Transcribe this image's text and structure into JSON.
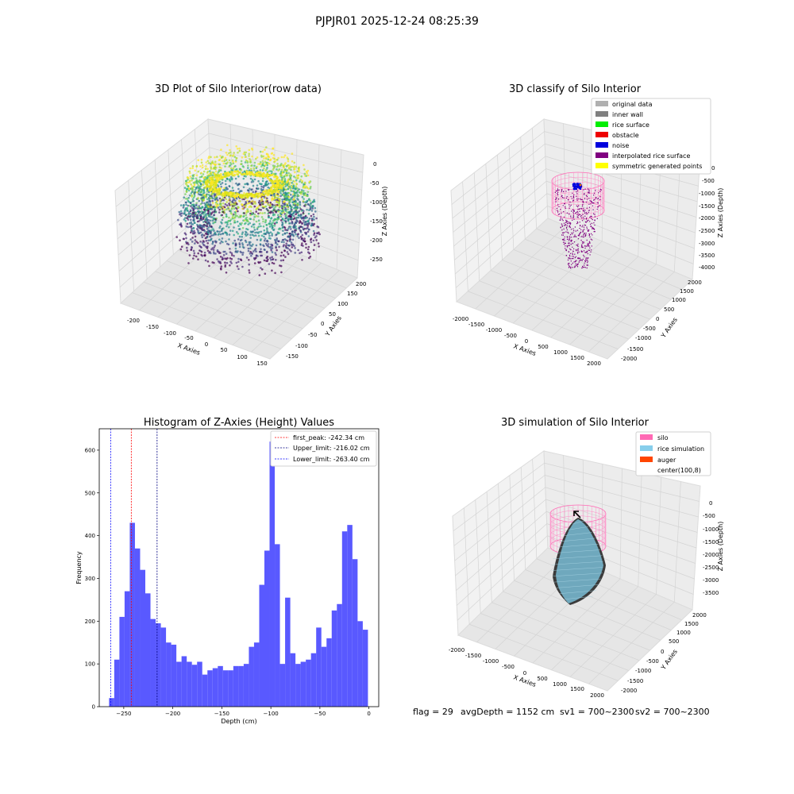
{
  "suptitle": "PJPJR01 2025-12-24 08:25:39",
  "panels": {
    "raw": {
      "title": "3D Plot of Silo Interior(row data)",
      "xlabel": "X Axies",
      "ylabel": "Y Axies",
      "zlabel": "Z Axies (Depth)",
      "xticks": [
        "-200",
        "-150",
        "-100",
        "-50",
        "0",
        "50",
        "100",
        "150"
      ],
      "yticks": [
        "-150",
        "-100",
        "-50",
        "0",
        "50",
        "100",
        "150",
        "200"
      ],
      "zticks": [
        "0",
        "-50",
        "-100",
        "-150",
        "-200",
        "-250"
      ]
    },
    "classify": {
      "title": "3D classify of Silo Interior",
      "xlabel": "X Axies",
      "ylabel": "Y Axies",
      "zlabel": "Z Axies (Depth)",
      "xticks": [
        "-2000",
        "-1500",
        "-1000",
        "-500",
        "0",
        "500",
        "1000",
        "1500",
        "2000"
      ],
      "yticks": [
        "-2000",
        "-1500",
        "-1000",
        "-500",
        "0",
        "500",
        "1000",
        "1500",
        "2000"
      ],
      "zticks": [
        "0",
        "-500",
        "-1000",
        "-1500",
        "-2000",
        "-2500",
        "-3000",
        "-3500",
        "-4000"
      ],
      "legend": [
        {
          "label": "original data",
          "color": "#b0b0b0"
        },
        {
          "label": "inner wall",
          "color": "#808080"
        },
        {
          "label": "rice surface",
          "color": "#00ee00"
        },
        {
          "label": "obstacle",
          "color": "#ee0000"
        },
        {
          "label": "noise",
          "color": "#0000dd"
        },
        {
          "label": "interpolated rice surface",
          "color": "#800080"
        },
        {
          "label": "symmetric generated points",
          "color": "#ffff00"
        }
      ]
    },
    "simulation": {
      "title": "3D simulation of Silo Interior",
      "xlabel": "X Axies",
      "ylabel": "Y Axies",
      "zlabel": "Z Axies (Depth)",
      "xticks": [
        "-2000",
        "-1500",
        "-1000",
        "-500",
        "0",
        "500",
        "1000",
        "1500",
        "2000"
      ],
      "yticks": [
        "-2000",
        "-1500",
        "-1000",
        "-500",
        "0",
        "500",
        "1000",
        "1500",
        "2000"
      ],
      "zticks": [
        "0",
        "-500",
        "-1000",
        "-1500",
        "-2000",
        "-2500",
        "-3000",
        "-3500"
      ],
      "legend": [
        {
          "label": "silo",
          "color": "#ff69b4"
        },
        {
          "label": "rice simulation",
          "color": "#87ceeb"
        },
        {
          "label": "auger",
          "color": "#ff4500"
        },
        {
          "label": "center(100,8)",
          "color": "#ffffff"
        }
      ]
    }
  },
  "status_line": [
    "flag = 29",
    "avgDepth = 1152 cm",
    "sv1 = 700~2300",
    "sv2 = 700~2300"
  ],
  "chart_data": [
    {
      "type": "bar",
      "subtype": "histogram",
      "title": "Histogram of Z-Axies (Height) Values",
      "xlabel": "Depth (cm)",
      "ylabel": "Frequency",
      "xlim": [
        -275,
        10
      ],
      "ylim": [
        0,
        650
      ],
      "xticks": [
        -250,
        -200,
        -150,
        -100,
        -50,
        0
      ],
      "yticks": [
        0,
        100,
        200,
        300,
        400,
        500,
        600
      ],
      "bar_color": "#5050ff",
      "bin_start": -265,
      "bin_width": 5.28,
      "values": [
        20,
        110,
        210,
        270,
        430,
        370,
        320,
        265,
        205,
        195,
        185,
        150,
        145,
        105,
        118,
        105,
        98,
        105,
        75,
        85,
        90,
        95,
        85,
        85,
        95,
        95,
        100,
        140,
        150,
        285,
        365,
        620,
        380,
        100,
        255,
        125,
        100,
        105,
        110,
        125,
        185,
        140,
        160,
        225,
        240,
        410,
        425,
        345,
        200,
        180
      ],
      "vlines": [
        {
          "label": "first_peak: -242.34 cm",
          "x": -242.34,
          "color": "#ff0000"
        },
        {
          "label": "Upper_limit: -216.02 cm",
          "x": -216.02,
          "color": "#000080"
        },
        {
          "label": "Lower_limit: -263.40 cm",
          "x": -263.4,
          "color": "#0000ff"
        }
      ],
      "legend_position": "top-right"
    }
  ]
}
